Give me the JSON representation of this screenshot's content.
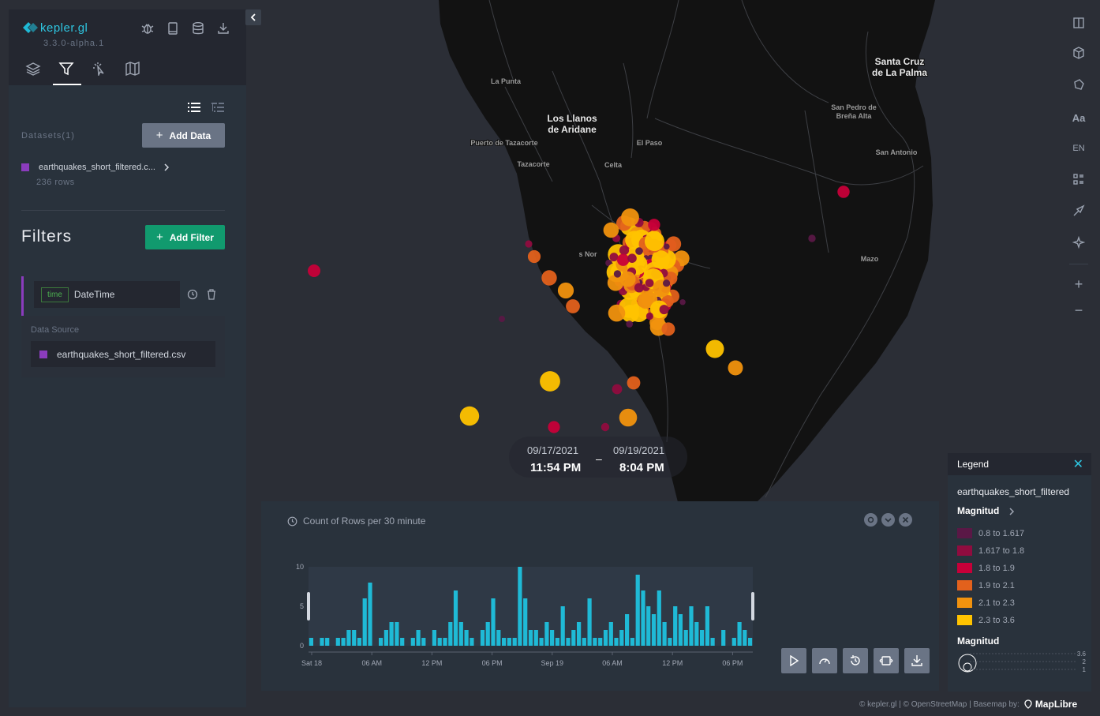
{
  "app": {
    "name": "kepler.gl",
    "version": "3.3.0-alpha.1"
  },
  "header_icons": [
    "bug-icon",
    "book-icon",
    "database-icon",
    "download-icon"
  ],
  "tabs": [
    "layers-icon",
    "filter-icon",
    "interactions-icon",
    "map-style-icon"
  ],
  "datasets": {
    "label": "Datasets(1)",
    "add_button": "Add Data",
    "items": [
      {
        "name": "earthquakes_short_filtered.c...",
        "rows": "236 rows",
        "color": "#8b3cbd"
      }
    ]
  },
  "filters": {
    "title": "Filters",
    "add_button": "Add Filter",
    "items": [
      {
        "type_badge": "time",
        "field": "DateTime",
        "data_source_label": "Data Source",
        "data_source": "earthquakes_short_filtered.csv"
      }
    ]
  },
  "map": {
    "places": [
      {
        "name": "Santa Cruz de La Palma",
        "lines": [
          "Santa Cruz",
          "de La Palma"
        ],
        "size": "large"
      },
      {
        "name": "Los Llanos de Aridane",
        "lines": [
          "Los Llanos",
          "de Aridane"
        ],
        "size": "large"
      },
      {
        "name": "La Punta",
        "lines": [
          "La Punta"
        ],
        "size": "small"
      },
      {
        "name": "San Pedro de Breña Alta",
        "lines": [
          "San Pedro de",
          "Breña Alta"
        ],
        "size": "small"
      },
      {
        "name": "Puerto de Tazacorte",
        "lines": [
          "Puerto de Tazacorte"
        ],
        "size": "small"
      },
      {
        "name": "El Paso",
        "lines": [
          "El Paso"
        ],
        "size": "small"
      },
      {
        "name": "San Antonio",
        "lines": [
          "San Antonio"
        ],
        "size": "small"
      },
      {
        "name": "Tazacorte",
        "lines": [
          "Tazacorte"
        ],
        "size": "small"
      },
      {
        "name": "Celta",
        "lines": [
          "Celta"
        ],
        "size": "small"
      },
      {
        "name": "Mazo",
        "lines": [
          "Mazo"
        ],
        "size": "small"
      },
      {
        "name": "Los Nor",
        "lines": [
          "s Nor"
        ],
        "size": "small"
      }
    ]
  },
  "right_toolbar": [
    "split-map-icon",
    "3d-cube-icon",
    "draw-polygon-icon",
    "Aa",
    "EN",
    "legend-icon",
    "brush-icon",
    "effects-icon",
    "+",
    "−"
  ],
  "time_display": {
    "start_date": "09/17/2021",
    "start_time": "11:54 PM",
    "end_date": "09/19/2021",
    "end_time": "8:04 PM",
    "separator": "–"
  },
  "timeline": {
    "title": "Count of Rows per 30 minute",
    "y_ticks": [
      "10",
      "5",
      "0"
    ],
    "x_ticks": [
      "Sat 18",
      "06 AM",
      "12 PM",
      "06 PM",
      "Sep 19",
      "06 AM",
      "12 PM",
      "06 PM"
    ],
    "buttons": [
      "play-icon",
      "speed-icon",
      "history-icon",
      "fit-window-icon",
      "export-icon"
    ]
  },
  "chart_data": {
    "type": "bar",
    "title": "Count of Rows per 30 minute",
    "xlabel": "",
    "ylabel": "",
    "ylim": [
      0,
      10
    ],
    "y_ticks": [
      0,
      5,
      10
    ],
    "x_tick_labels": [
      "Sat 18",
      "06 AM",
      "12 PM",
      "06 PM",
      "Sep 19",
      "06 AM",
      "12 PM",
      "06 PM"
    ],
    "values": [
      1,
      0,
      1,
      1,
      0,
      1,
      1,
      2,
      2,
      1,
      6,
      8,
      0,
      1,
      2,
      3,
      3,
      1,
      0,
      1,
      2,
      1,
      0,
      2,
      1,
      1,
      3,
      7,
      3,
      2,
      1,
      0,
      2,
      3,
      6,
      2,
      1,
      1,
      1,
      10,
      6,
      2,
      2,
      1,
      3,
      2,
      1,
      5,
      1,
      2,
      3,
      1,
      6,
      1,
      1,
      2,
      3,
      1,
      2,
      4,
      1,
      9,
      7,
      5,
      4,
      7,
      3,
      1,
      5,
      4,
      2,
      5,
      3,
      2,
      5,
      1,
      0,
      2,
      0,
      1,
      3,
      2,
      1
    ]
  },
  "legend": {
    "title": "Legend",
    "dataset": "earthquakes_short_filtered",
    "field": "Magnitud",
    "items": [
      {
        "label": "0.8 to 1.617",
        "color": "#5a1846"
      },
      {
        "label": "1.617 to 1.8",
        "color": "#900c3f"
      },
      {
        "label": "1.8 to 1.9",
        "color": "#c70039"
      },
      {
        "label": "1.9 to 2.1",
        "color": "#e3611c"
      },
      {
        "label": "2.1 to 2.3",
        "color": "#f1920e"
      },
      {
        "label": "2.3 to 3.6",
        "color": "#ffc300"
      }
    ],
    "size_field": "Magnitud",
    "size_ticks": [
      "3.6",
      "2",
      "1"
    ]
  },
  "attribution": {
    "text": "© kepler.gl | © OpenStreetMap | Basemap by:",
    "brand": "MapLibre"
  },
  "colors": {
    "accent": "#2ec5e0",
    "bar": "#1fbad6",
    "add_filter": "#119a6e",
    "land": "#111111",
    "water": "#2b2e36"
  }
}
